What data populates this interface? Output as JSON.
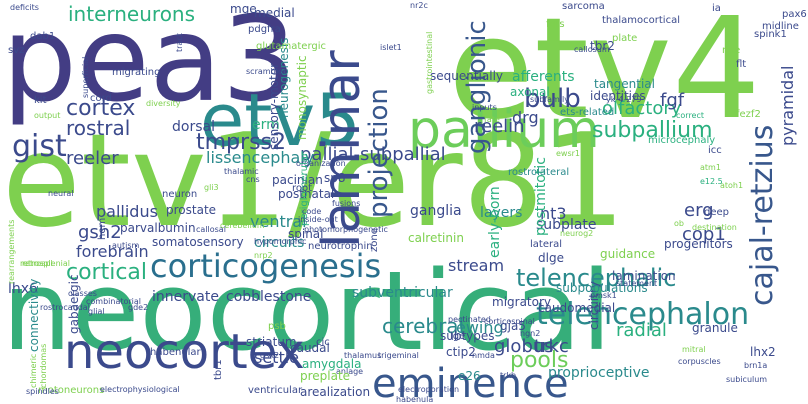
{
  "palette": {
    "dark": "#3b4a8c",
    "teal": "#2a8a8c",
    "green": "#36ae7a",
    "lime": "#7ed04f",
    "light": "#c9e43f"
  },
  "words": [
    {
      "text": "etv1/er81",
      "color": "#7ed04f"
    },
    {
      "text": "neocortical",
      "color": "#36ae7a"
    },
    {
      "text": "pea3",
      "color": "#433d84"
    },
    {
      "text": "etv4",
      "color": "#7ed04f"
    },
    {
      "text": "etv5",
      "color": "#2a8a8c"
    },
    {
      "text": "pallium",
      "color": "#6ccd5a"
    },
    {
      "text": "laminar",
      "color": "#3b4a8c"
    },
    {
      "text": "neocortex",
      "color": "#3b4a8c"
    },
    {
      "text": "corticogenesis",
      "color": "#2a6f8e"
    },
    {
      "text": "eminence",
      "color": "#38578c"
    },
    {
      "text": "telencephalon",
      "color": "#2a8a8c"
    },
    {
      "text": "telencephalic",
      "color": "#2a8a8c"
    },
    {
      "text": "cortical",
      "color": "#2ab07f"
    },
    {
      "text": "cajal-retzius",
      "color": "#38578c"
    },
    {
      "text": "projection",
      "color": "#38578c"
    },
    {
      "text": "ganglionic",
      "color": "#38578c"
    },
    {
      "text": "subpallium",
      "color": "#2ab07f"
    },
    {
      "text": "pallial-subpallial",
      "color": "#3b4a8c"
    },
    {
      "text": "tmprss2",
      "color": "#3b4a8c"
    },
    {
      "text": "gist",
      "color": "#3b4a8c"
    },
    {
      "text": "cortex",
      "color": "#3b4a8c"
    },
    {
      "text": "rostral",
      "color": "#3b4a8c"
    },
    {
      "text": "reeler",
      "color": "#3b4a8c"
    },
    {
      "text": "lissencephaly",
      "color": "#2a8a8c"
    },
    {
      "text": "interneurons",
      "color": "#2ab07f"
    },
    {
      "text": "bulb",
      "color": "#3b4a8c"
    },
    {
      "text": "reelin",
      "color": "#3b4a8c"
    },
    {
      "text": "drg",
      "color": "#3b4a8c"
    },
    {
      "text": "olfactory",
      "color": "#2ab07f"
    },
    {
      "text": "fgf",
      "color": "#3b4a8c"
    },
    {
      "text": "pyramidal",
      "color": "#3b4a8c"
    },
    {
      "text": "cop1",
      "color": "#3b4a8c"
    },
    {
      "text": "erg",
      "color": "#3b4a8c"
    },
    {
      "text": "trkc",
      "color": "#3b4a8c"
    },
    {
      "text": "radial",
      "color": "#2ab07f"
    },
    {
      "text": "stream",
      "color": "#3b4a8c"
    },
    {
      "text": "cerebral",
      "color": "#2a8a8c"
    },
    {
      "text": "globus",
      "color": "#3b4a8c"
    },
    {
      "text": "pools",
      "color": "#6ccd5a"
    },
    {
      "text": "ewing",
      "color": "#2a8a8c"
    },
    {
      "text": "settle",
      "color": "#3b4a8c"
    },
    {
      "text": "gsh2",
      "color": "#3b4a8c"
    },
    {
      "text": "forebrain",
      "color": "#3b4a8c"
    },
    {
      "text": "pallidus",
      "color": "#3b4a8c"
    },
    {
      "text": "ventral",
      "color": "#2a8a8c"
    },
    {
      "text": "circuits",
      "color": "#2a8a8c"
    },
    {
      "text": "ganglia",
      "color": "#3b4a8c"
    },
    {
      "text": "layers",
      "color": "#2a8a8c"
    },
    {
      "text": "nt3",
      "color": "#3b4a8c"
    },
    {
      "text": "subplate",
      "color": "#3b4a8c"
    },
    {
      "text": "early-born",
      "color": "#2ab07f"
    },
    {
      "text": "postmitotic",
      "color": "#2ab07f"
    },
    {
      "text": "innervate",
      "color": "#3b4a8c"
    },
    {
      "text": "cobblestone",
      "color": "#3b4a8c"
    },
    {
      "text": "subventricular",
      "color": "#2a8a8c"
    },
    {
      "text": "lhx6",
      "color": "#3b4a8c"
    },
    {
      "text": "connectivity",
      "color": "#2a8a8c"
    },
    {
      "text": "gabaergic",
      "color": "#3b4a8c"
    },
    {
      "text": "proprioceptive",
      "color": "#2a8a8c"
    },
    {
      "text": "afferents",
      "color": "#2ab07f"
    },
    {
      "text": "axonal",
      "color": "#2ab07f"
    },
    {
      "text": "dorsal",
      "color": "#3b4a8c"
    },
    {
      "text": "erm",
      "color": "#2ab07f"
    },
    {
      "text": "medial",
      "color": "#3b4a8c"
    },
    {
      "text": "neurogenesis",
      "color": "#2a8a8c"
    },
    {
      "text": "sensory-motor",
      "color": "#3b4a8c"
    },
    {
      "text": "mge",
      "color": "#3b4a8c"
    },
    {
      "text": "pdgfra",
      "color": "#3b4a8c"
    },
    {
      "text": "monosynaptic",
      "color": "#7ed04f"
    },
    {
      "text": "glutamatergic",
      "color": "#7ed04f"
    },
    {
      "text": "dab1",
      "color": "#3b4a8c"
    },
    {
      "text": "circuitry",
      "color": "#3b4a8c"
    },
    {
      "text": "migratory",
      "color": "#3b4a8c"
    },
    {
      "text": "subtypes",
      "color": "#3b4a8c"
    },
    {
      "text": "caudomedial",
      "color": "#3b4a8c"
    },
    {
      "text": "caudal",
      "color": "#3b4a8c"
    },
    {
      "text": "striatum",
      "color": "#3b4a8c"
    },
    {
      "text": "habenular",
      "color": "#3b4a8c"
    },
    {
      "text": "amygdala",
      "color": "#2ab07f"
    },
    {
      "text": "zone",
      "color": "#3b4a8c"
    },
    {
      "text": "ctip2",
      "color": "#3b4a8c"
    },
    {
      "text": "e26",
      "color": "#2a8a8c"
    },
    {
      "text": "gja5",
      "color": "#3b4a8c"
    },
    {
      "text": "granule",
      "color": "#3b4a8c"
    },
    {
      "text": "lhx2",
      "color": "#3b4a8c"
    },
    {
      "text": "parvalbumin",
      "color": "#3b4a8c"
    },
    {
      "text": "somatosensory",
      "color": "#3b4a8c"
    },
    {
      "text": "prostate",
      "color": "#3b4a8c"
    },
    {
      "text": "neuron",
      "color": "#3b4a8c"
    },
    {
      "text": "postnatal",
      "color": "#3b4a8c"
    },
    {
      "text": "sp8",
      "color": "#3b4a8c"
    },
    {
      "text": "spinal",
      "color": "#3b4a8c"
    },
    {
      "text": "calretinin",
      "color": "#7ed04f"
    },
    {
      "text": "guidance",
      "color": "#7ed04f"
    },
    {
      "text": "progenitors",
      "color": "#3b4a8c"
    },
    {
      "text": "sequentially",
      "color": "#3b4a8c"
    },
    {
      "text": "tangential",
      "color": "#2a8a8c"
    },
    {
      "text": "identities",
      "color": "#3b4a8c"
    },
    {
      "text": "ets-related",
      "color": "#2a8a8c"
    },
    {
      "text": "microcephaly",
      "color": "#2ab07f"
    },
    {
      "text": "fezf2",
      "color": "#7ed04f"
    },
    {
      "text": "rostrolateral",
      "color": "#2a8a8c"
    },
    {
      "text": "subpopulations",
      "color": "#2a8a8c"
    },
    {
      "text": "lamination",
      "color": "#3b4a8c"
    },
    {
      "text": "pacinian",
      "color": "#3b4a8c"
    },
    {
      "text": "pax6",
      "color": "#3b4a8c"
    },
    {
      "text": "tbr2",
      "color": "#3b4a8c"
    },
    {
      "text": "sarcoma",
      "color": "#3b4a8c"
    },
    {
      "text": "thalamocortical",
      "color": "#3b4a8c"
    },
    {
      "text": "fgfs",
      "color": "#7ed04f"
    },
    {
      "text": "plate",
      "color": "#7ed04f"
    },
    {
      "text": "midline",
      "color": "#3b4a8c"
    },
    {
      "text": "spink1",
      "color": "#3b4a8c"
    },
    {
      "text": "ia",
      "color": "#3b4a8c"
    },
    {
      "text": "rise",
      "color": "#7ed04f"
    },
    {
      "text": "flt",
      "color": "#3b4a8c"
    },
    {
      "text": "migrating",
      "color": "#3b4a8c"
    },
    {
      "text": "svz",
      "color": "#3b4a8c"
    },
    {
      "text": "cord",
      "color": "#3b4a8c"
    },
    {
      "text": "kit",
      "color": "#3b4a8c"
    },
    {
      "text": "output",
      "color": "#7ed04f"
    },
    {
      "text": "diversity",
      "color": "#7ed04f"
    },
    {
      "text": "subfamily",
      "color": "#3b4a8c"
    },
    {
      "text": "yk-4-279",
      "color": "#3b4a8c"
    },
    {
      "text": "correct",
      "color": "#2ab07f"
    },
    {
      "text": "icc",
      "color": "#3b4a8c"
    },
    {
      "text": "atm1",
      "color": "#7ed04f"
    },
    {
      "text": "e12.5",
      "color": "#2ab07f"
    },
    {
      "text": "deep",
      "color": "#3b4a8c"
    },
    {
      "text": "destination",
      "color": "#7ed04f"
    },
    {
      "text": "ob",
      "color": "#7ed04f"
    },
    {
      "text": "thalamic",
      "color": "#3b4a8c"
    },
    {
      "text": "cns",
      "color": "#3b4a8c"
    },
    {
      "text": "organization",
      "color": "#3b4a8c"
    },
    {
      "text": "periglomerular",
      "color": "#2ab07f"
    },
    {
      "text": "root",
      "color": "#3b4a8c"
    },
    {
      "text": "code",
      "color": "#3b4a8c"
    },
    {
      "text": "fusions",
      "color": "#3b4a8c"
    },
    {
      "text": "inside-out",
      "color": "#3b4a8c"
    },
    {
      "text": "photomorphogenetic",
      "color": "#3b4a8c"
    },
    {
      "text": "hypomorphic",
      "color": "#3b4a8c"
    },
    {
      "text": "neurotrophin",
      "color": "#3b4a8c"
    },
    {
      "text": "dlge",
      "color": "#3b4a8c"
    },
    {
      "text": "lateral",
      "color": "#3b4a8c"
    },
    {
      "text": "neurog2",
      "color": "#7ed04f"
    },
    {
      "text": "statement",
      "color": "#3b4a8c"
    },
    {
      "text": "pmsk1",
      "color": "#3b4a8c"
    },
    {
      "text": "corticospinal",
      "color": "#3b4a8c"
    },
    {
      "text": "pectinated",
      "color": "#3b4a8c"
    },
    {
      "text": "lge",
      "color": "#3b4a8c"
    },
    {
      "text": "ngn2",
      "color": "#3b4a8c"
    },
    {
      "text": "corpuscles",
      "color": "#3b4a8c"
    },
    {
      "text": "mitral",
      "color": "#7ed04f"
    },
    {
      "text": "brn1a",
      "color": "#3b4a8c"
    },
    {
      "text": "subiculum",
      "color": "#3b4a8c"
    },
    {
      "text": "trkb",
      "color": "#3b4a8c"
    },
    {
      "text": "nmda",
      "color": "#3b4a8c"
    },
    {
      "text": "electroporation",
      "color": "#3b4a8c"
    },
    {
      "text": "habenula",
      "color": "#3b4a8c"
    },
    {
      "text": "arealization",
      "color": "#3b4a8c"
    },
    {
      "text": "trigeminal",
      "color": "#3b4a8c"
    },
    {
      "text": "cic",
      "color": "#3b4a8c"
    },
    {
      "text": "thalamus",
      "color": "#3b4a8c"
    },
    {
      "text": "anlage",
      "color": "#3b4a8c"
    },
    {
      "text": "ventricular",
      "color": "#3b4a8c"
    },
    {
      "text": "preplate",
      "color": "#7ed04f"
    },
    {
      "text": "psb",
      "color": "#7ed04f"
    },
    {
      "text": "gsx2",
      "color": "#3b4a8c"
    },
    {
      "text": "tbr1",
      "color": "#3b4a8c"
    },
    {
      "text": "motoneurons",
      "color": "#7ed04f"
    },
    {
      "text": "electrophysiological",
      "color": "#3b4a8c"
    },
    {
      "text": "spindles",
      "color": "#3b4a8c"
    },
    {
      "text": "classes",
      "color": "#3b4a8c"
    },
    {
      "text": "rostrocaudal",
      "color": "#3b4a8c"
    },
    {
      "text": "glial",
      "color": "#3b4a8c"
    },
    {
      "text": "combinatorial",
      "color": "#3b4a8c"
    },
    {
      "text": "gde2",
      "color": "#3b4a8c"
    },
    {
      "text": "cerebellum",
      "color": "#7ed04f"
    },
    {
      "text": "callosal",
      "color": "#3b4a8c"
    },
    {
      "text": "autism",
      "color": "#3b4a8c"
    },
    {
      "text": "hem",
      "color": "#3b4a8c"
    },
    {
      "text": "neural",
      "color": "#3b4a8c"
    },
    {
      "text": "gli3",
      "color": "#7ed04f"
    },
    {
      "text": "nrp2",
      "color": "#7ed04f"
    },
    {
      "text": "atoh1",
      "color": "#7ed04f"
    },
    {
      "text": "retrospl",
      "color": "#7ed04f"
    },
    {
      "text": "rearrangements",
      "color": "#7ed04f"
    },
    {
      "text": "chordomas",
      "color": "#7ed04f"
    },
    {
      "text": "retrosplenial",
      "color": "#7ed04f"
    },
    {
      "text": "chimeric",
      "color": "#7ed04f"
    },
    {
      "text": "deficits",
      "color": "#3b4a8c"
    },
    {
      "text": "superficial",
      "color": "#3b4a8c"
    },
    {
      "text": "tract",
      "color": "#3b4a8c"
    },
    {
      "text": "scrambler",
      "color": "#3b4a8c"
    },
    {
      "text": "islet1",
      "color": "#3b4a8c"
    },
    {
      "text": "gastrointestinal",
      "color": "#7ed04f"
    },
    {
      "text": "inputs",
      "color": "#3b4a8c"
    },
    {
      "text": "fate",
      "color": "#7ed04f"
    },
    {
      "text": "callosum",
      "color": "#3b4a8c"
    },
    {
      "text": "nr2c",
      "color": "#3b4a8c"
    },
    {
      "text": "ewsr1",
      "color": "#7ed04f"
    }
  ]
}
